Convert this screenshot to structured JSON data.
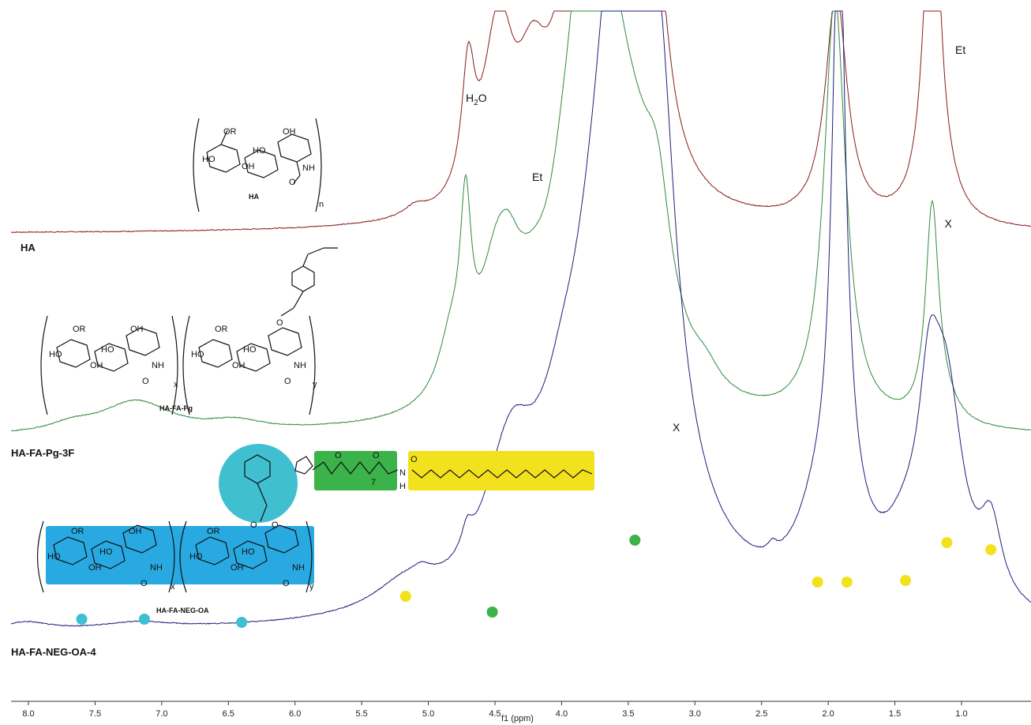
{
  "chart_data": {
    "type": "line",
    "xlabel": "f1 (ppm)",
    "xlim": [
      8.1,
      0.7
    ],
    "x_reversed": true,
    "xticks": [
      8.0,
      7.5,
      7.0,
      6.5,
      6.0,
      5.5,
      5.0,
      4.5,
      4.0,
      3.5,
      3.0,
      2.5,
      2.0,
      1.5,
      1.0
    ],
    "xtick_labels": [
      "8.0",
      "7.5",
      "7.0",
      "6.5",
      "6.0",
      "5.5",
      "5.0",
      "4.5",
      "4.0",
      "3.5",
      "3.0",
      "2.5",
      "2.0",
      "1.5",
      "1.0"
    ],
    "grid": false,
    "series": [
      {
        "name": "HA",
        "color": "#8b1a1a",
        "baseline": 296,
        "peaks": [
          {
            "ppm": 5.1,
            "h": 12,
            "w": 0.01
          },
          {
            "ppm": 4.7,
            "h": 155,
            "w": 0.006
          },
          {
            "ppm": 4.5,
            "h": 150,
            "w": 0.012
          },
          {
            "ppm": 4.43,
            "h": 75,
            "w": 0.01
          },
          {
            "ppm": 4.25,
            "h": 70,
            "w": 0.015
          },
          {
            "ppm": 4.2,
            "h": 65,
            "w": 0.012
          },
          {
            "ppm": 4.0,
            "h": 55,
            "w": 0.012
          },
          {
            "ppm": 3.85,
            "h": 145,
            "w": 0.015
          },
          {
            "ppm": 3.75,
            "h": 150,
            "w": 0.02
          },
          {
            "ppm": 3.68,
            "h": 195,
            "w": 0.02
          },
          {
            "ppm": 3.6,
            "h": 110,
            "w": 0.015
          },
          {
            "ppm": 3.5,
            "h": 120,
            "w": 0.012
          },
          {
            "ppm": 3.45,
            "h": 170,
            "w": 0.012
          },
          {
            "ppm": 3.4,
            "h": 165,
            "w": 0.012
          },
          {
            "ppm": 3.28,
            "h": 135,
            "w": 0.01
          },
          {
            "ppm": 1.94,
            "h": 290,
            "w": 0.01
          },
          {
            "ppm": 1.23,
            "h": 250,
            "w": 0.008
          },
          {
            "ppm": 1.21,
            "h": 240,
            "w": 0.006
          },
          {
            "ppm": 1.1,
            "h": 15,
            "w": 0.012
          }
        ]
      },
      {
        "name": "HA-FA-Pg-3F",
        "color": "#2e8b3d",
        "baseline": 554,
        "peaks": [
          {
            "ppm": 7.67,
            "h": 10,
            "w": 0.02
          },
          {
            "ppm": 7.25,
            "h": 22,
            "w": 0.03
          },
          {
            "ppm": 7.13,
            "h": 20,
            "w": 0.03
          },
          {
            "ppm": 6.45,
            "h": 12,
            "w": 0.025
          },
          {
            "ppm": 4.83,
            "h": 70,
            "w": 0.012
          },
          {
            "ppm": 4.72,
            "h": 200,
            "w": 0.005
          },
          {
            "ppm": 4.5,
            "h": 120,
            "w": 0.015
          },
          {
            "ppm": 4.4,
            "h": 80,
            "w": 0.012
          },
          {
            "ppm": 4.22,
            "h": 75,
            "w": 0.02
          },
          {
            "ppm": 4.0,
            "h": 60,
            "w": 0.012
          },
          {
            "ppm": 3.85,
            "h": 275,
            "w": 0.015
          },
          {
            "ppm": 3.76,
            "h": 160,
            "w": 0.02
          },
          {
            "ppm": 3.67,
            "h": 270,
            "w": 0.02
          },
          {
            "ppm": 3.45,
            "h": 195,
            "w": 0.025
          },
          {
            "ppm": 3.28,
            "h": 135,
            "w": 0.012
          },
          {
            "ppm": 2.92,
            "h": 22,
            "w": 0.012
          },
          {
            "ppm": 1.95,
            "h": 540,
            "w": 0.01
          },
          {
            "ppm": 1.22,
            "h": 270,
            "w": 0.006
          },
          {
            "ppm": 1.12,
            "h": 20,
            "w": 0.012
          }
        ]
      },
      {
        "name": "HA-FA-NEG-OA-4",
        "color": "#1e1e7a",
        "baseline": 803,
        "peaks": [
          {
            "ppm": 8.02,
            "h": 10,
            "w": 0.02
          },
          {
            "ppm": 7.18,
            "h": 8,
            "w": 0.03
          },
          {
            "ppm": 5.17,
            "h": 36,
            "w": 0.03
          },
          {
            "ppm": 5.05,
            "h": 10,
            "w": 0.008
          },
          {
            "ppm": 4.71,
            "h": 30,
            "w": 0.005
          },
          {
            "ppm": 4.45,
            "h": 85,
            "w": 0.02
          },
          {
            "ppm": 4.35,
            "h": 60,
            "w": 0.015
          },
          {
            "ppm": 4.18,
            "h": 60,
            "w": 0.03
          },
          {
            "ppm": 4.0,
            "h": 55,
            "w": 0.015
          },
          {
            "ppm": 3.8,
            "h": 130,
            "w": 0.025
          },
          {
            "ppm": 3.62,
            "h": 230,
            "w": 0.02
          },
          {
            "ppm": 3.48,
            "h": 600,
            "w": 0.025
          },
          {
            "ppm": 3.38,
            "h": 330,
            "w": 0.02
          },
          {
            "ppm": 3.23,
            "h": 145,
            "w": 0.012
          },
          {
            "ppm": 2.42,
            "h": 12,
            "w": 0.004
          },
          {
            "ppm": 2.08,
            "h": 80,
            "w": 0.02
          },
          {
            "ppm": 1.92,
            "h": 780,
            "w": 0.006
          },
          {
            "ppm": 1.86,
            "h": 70,
            "w": 0.02
          },
          {
            "ppm": 1.42,
            "h": 60,
            "w": 0.02
          },
          {
            "ppm": 1.24,
            "h": 190,
            "w": 0.01
          },
          {
            "ppm": 1.11,
            "h": 240,
            "w": 0.015
          },
          {
            "ppm": 0.78,
            "h": 95,
            "w": 0.01
          }
        ]
      }
    ],
    "annotations": [
      {
        "text": "H2O",
        "ppm": 4.7,
        "series": "HA"
      },
      {
        "text": "Et",
        "ppm": 4.22,
        "series": "HA"
      },
      {
        "text": "Et",
        "ppm": 1.2,
        "series": "HA"
      }
    ],
    "impurity_markers": [
      {
        "symbol": "X",
        "ppm": 1.1,
        "series": "HA"
      },
      {
        "symbol": "X",
        "ppm": 3.14,
        "series": "HA-FA-Pg-3F"
      }
    ],
    "assignment_dots": [
      {
        "ppm": 7.6,
        "color": "#3cc0d2"
      },
      {
        "ppm": 7.13,
        "color": "#3cc0d2"
      },
      {
        "ppm": 6.4,
        "color": "#3cc0d2"
      },
      {
        "ppm": 5.17,
        "color": "#f2e21e"
      },
      {
        "ppm": 4.52,
        "color": "#3cb24a"
      },
      {
        "ppm": 3.45,
        "color": "#3cb24a"
      },
      {
        "ppm": 2.08,
        "color": "#f2e21e"
      },
      {
        "ppm": 1.86,
        "color": "#f2e21e"
      },
      {
        "ppm": 1.42,
        "color": "#f2e21e"
      },
      {
        "ppm": 1.11,
        "color": "#f2e21e"
      },
      {
        "ppm": 0.78,
        "color": "#f2e21e"
      }
    ]
  },
  "structures": {
    "ha": {
      "name": "HA",
      "sub_n": "n",
      "labels": [
        "OR",
        "OH",
        "HO",
        "OH",
        "HO",
        "NH",
        "O"
      ]
    },
    "ha_fa_pg": {
      "name": "HA-FA-Pg",
      "sub_x": "x",
      "sub_y": "y",
      "labels": [
        "OR",
        "OH",
        "HO",
        "OH",
        "HO",
        "NH",
        "O",
        "OR",
        "HO",
        "OH",
        "HO",
        "NH",
        "O",
        "O"
      ]
    },
    "ha_fa_neg_oa": {
      "name": "HA-FA-NEG-OA",
      "sub_x": "x",
      "sub_y": "y",
      "sub_7": "7",
      "linker_labels": [
        "O",
        "O",
        "N",
        "H",
        "O",
        "O"
      ],
      "labels": [
        "OR",
        "OH",
        "HO",
        "OH",
        "HO",
        "NH",
        "O",
        "OR",
        "HO",
        "OH",
        "HO",
        "NH",
        "O",
        "O"
      ]
    }
  },
  "labels": {
    "h2o": "H2O",
    "et1": "Et",
    "et2": "Et",
    "ha": "HA",
    "ha_fa_pg_3f": "HA-FA-Pg-3F",
    "ha_fa_neg_oa_4": "HA-FA-NEG-OA-4"
  }
}
